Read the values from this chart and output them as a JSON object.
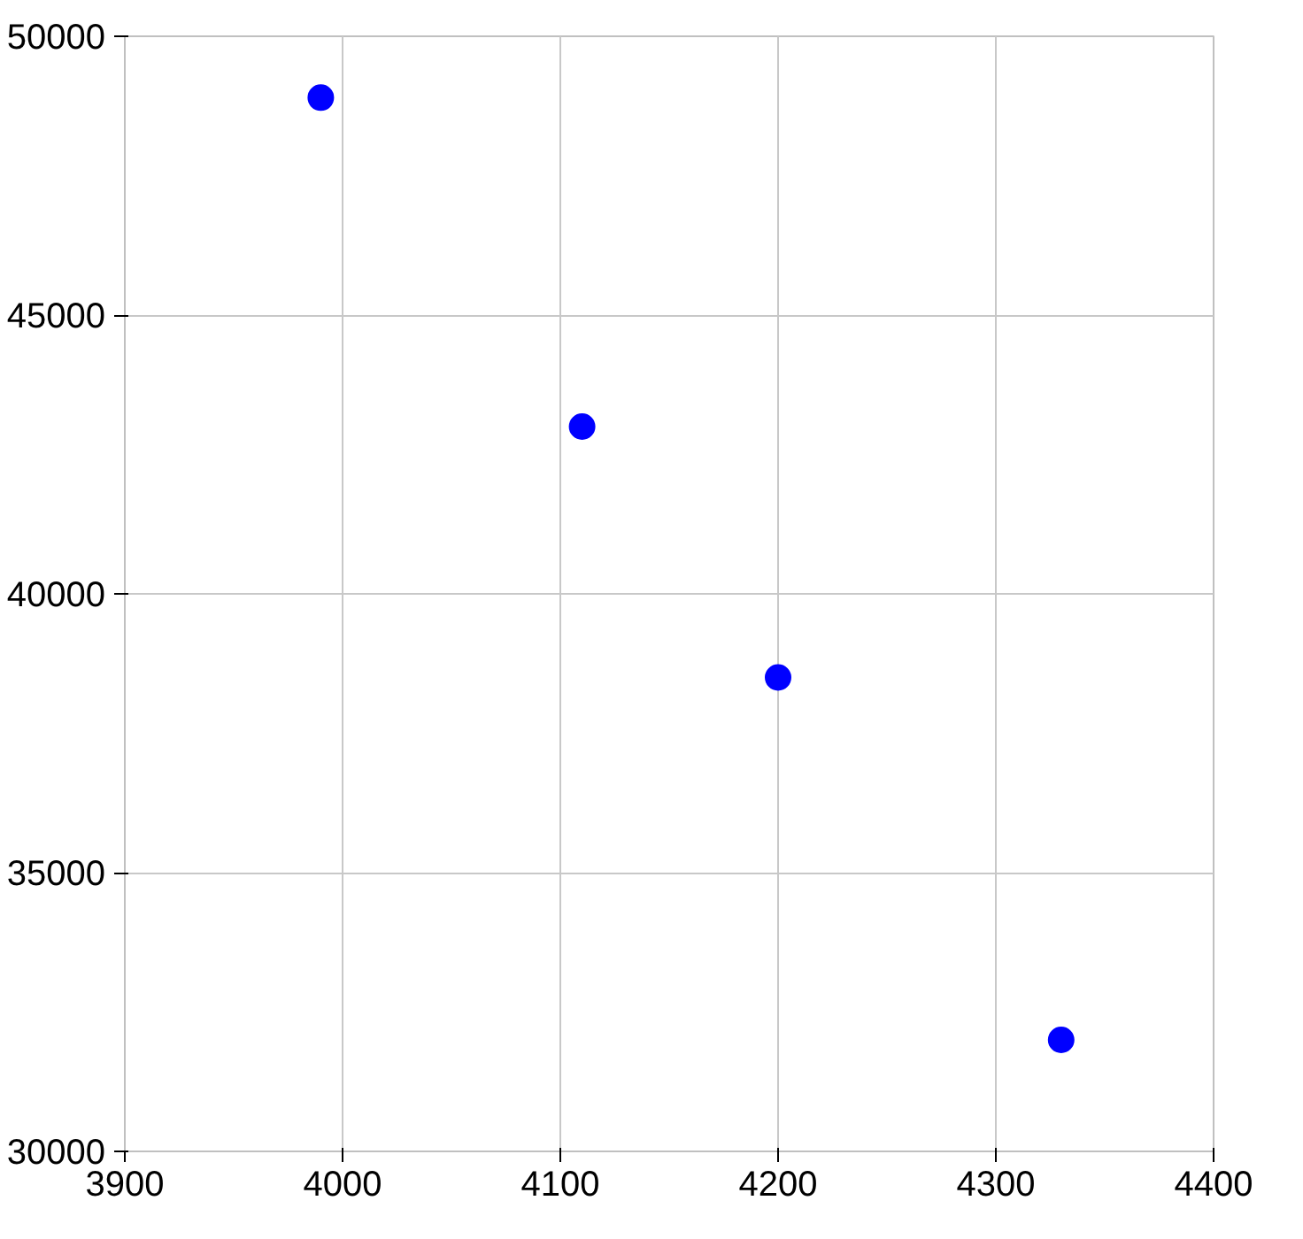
{
  "chart_data": {
    "type": "scatter",
    "x": [
      3990,
      4110,
      4200,
      4330
    ],
    "values": [
      48900,
      43000,
      38500,
      32000
    ],
    "color": "#0000ff",
    "marker": "circle",
    "xlim": [
      3900,
      4400
    ],
    "ylim": [
      30000,
      50000
    ],
    "xticks": [
      3900,
      4000,
      4100,
      4200,
      4300,
      4400
    ],
    "yticks": [
      30000,
      35000,
      40000,
      45000,
      50000
    ],
    "grid": true
  }
}
